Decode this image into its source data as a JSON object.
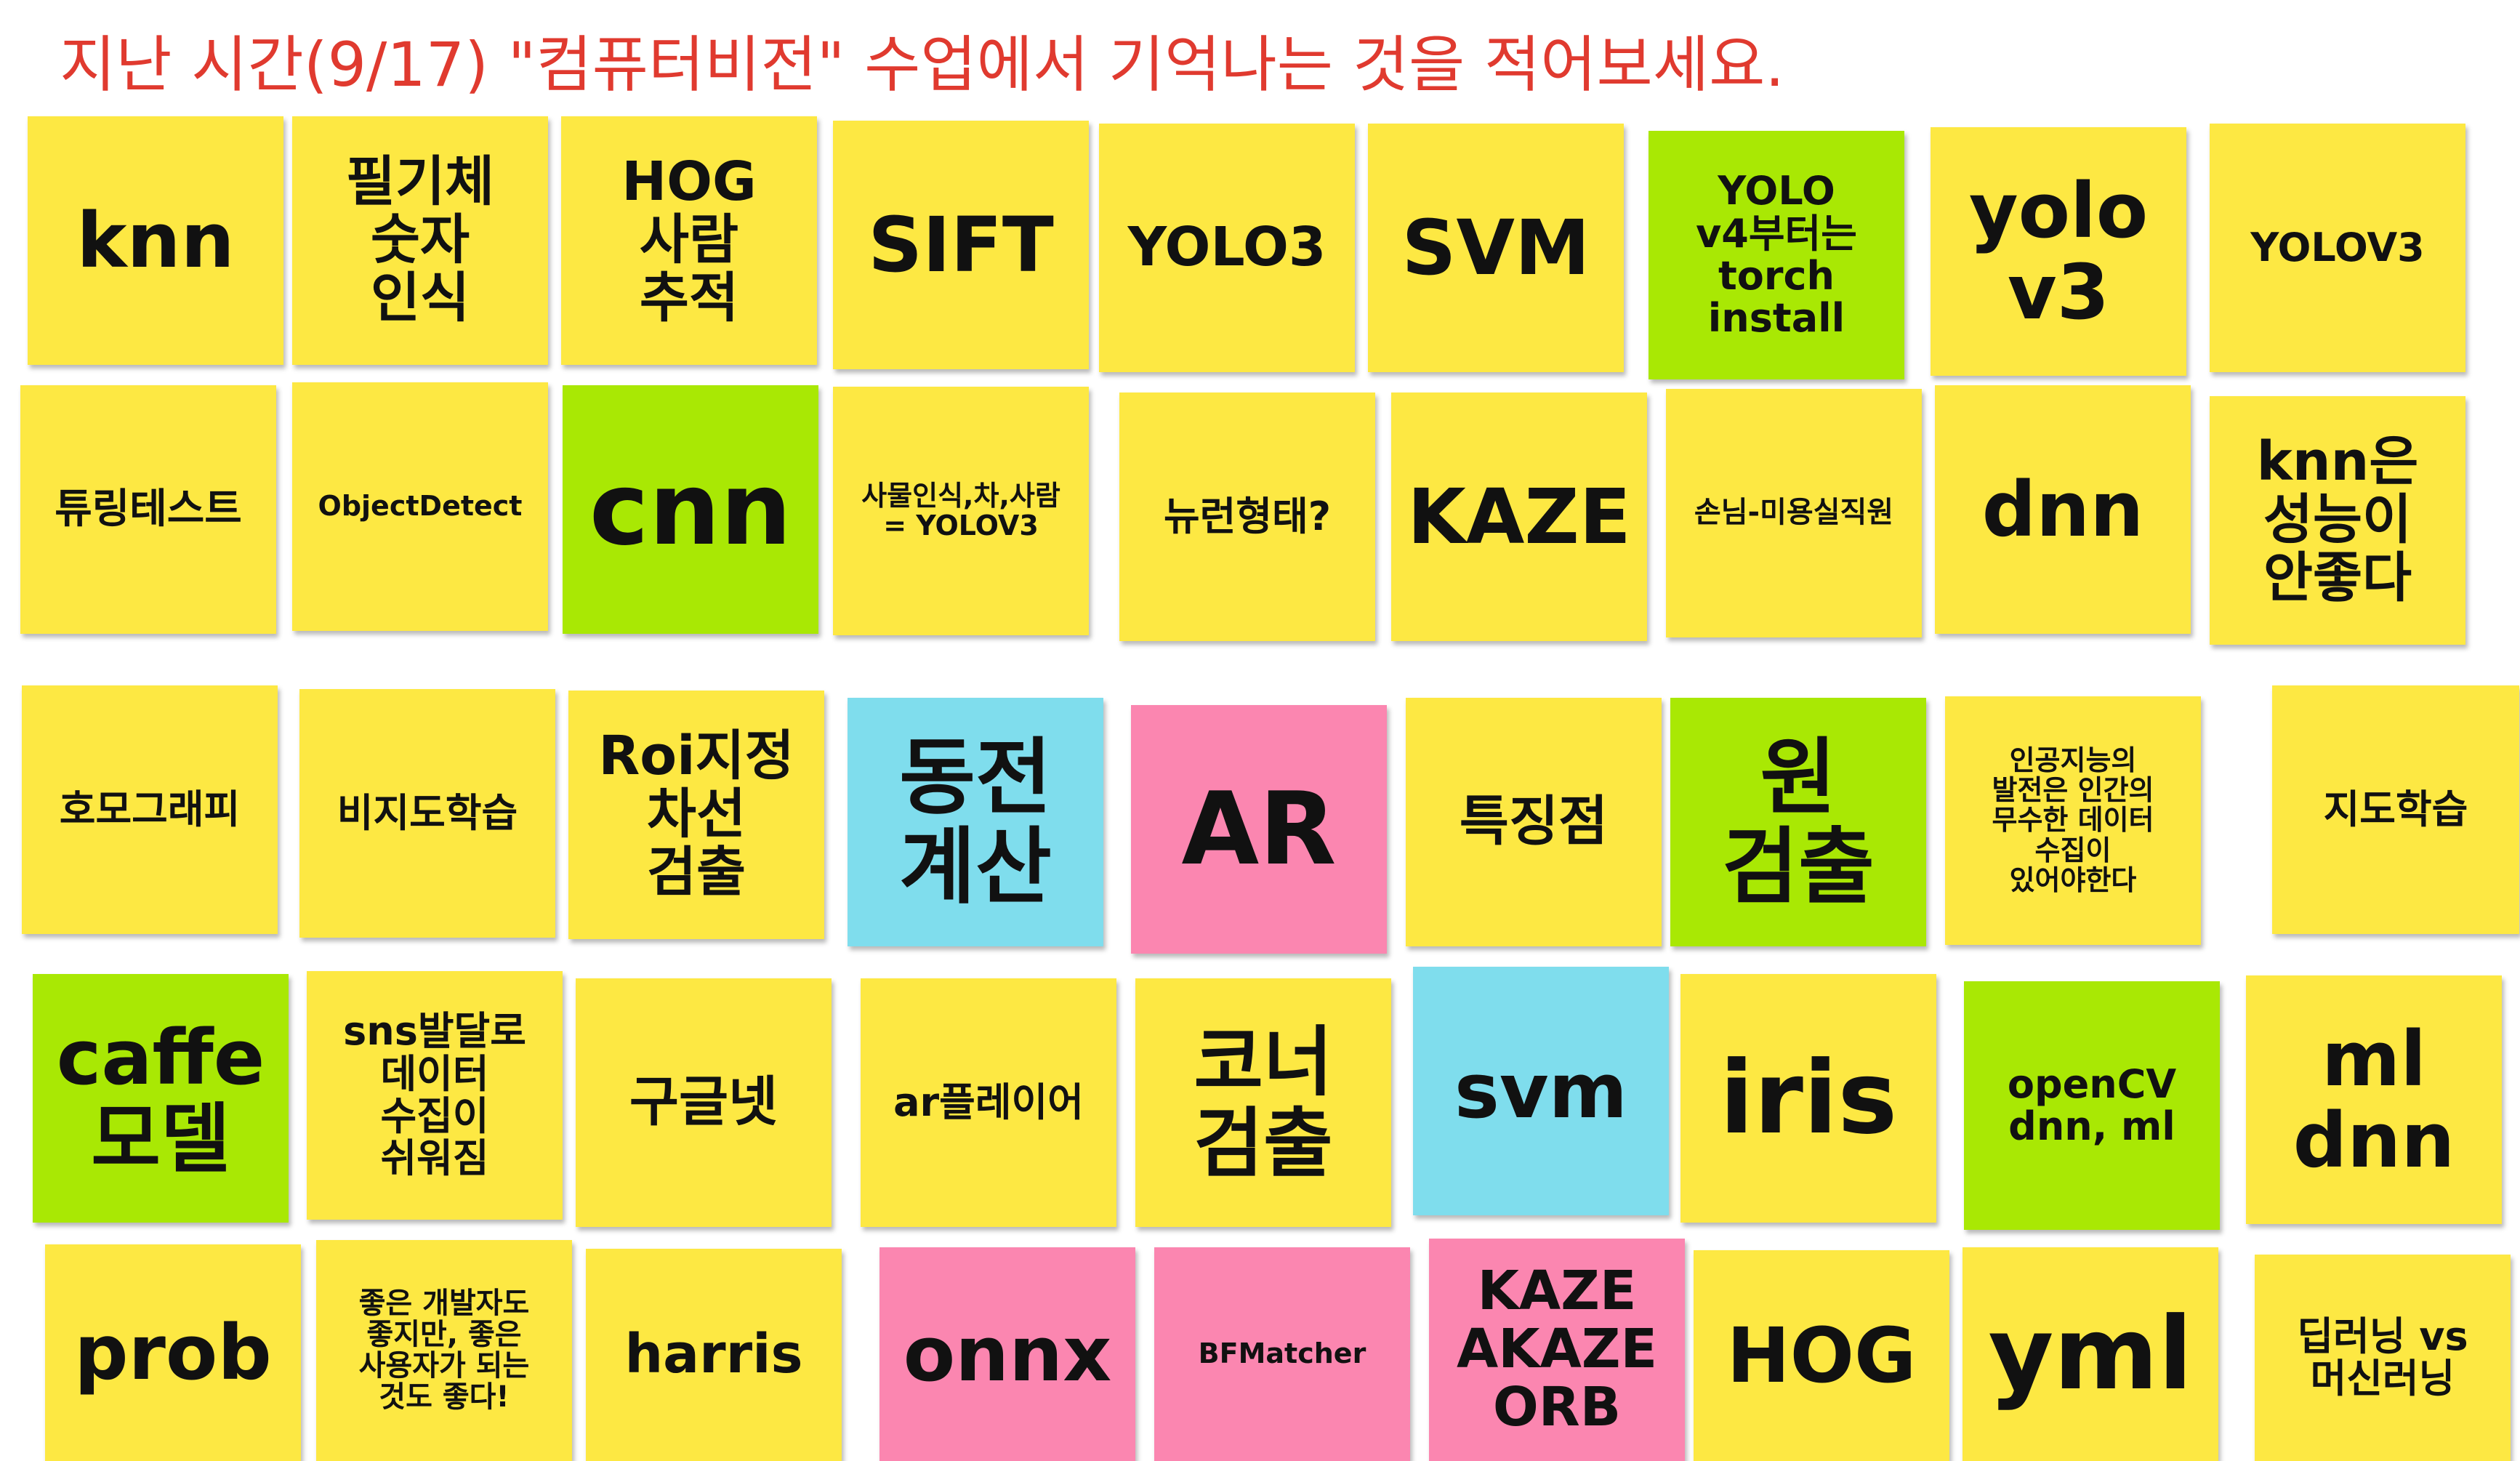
{
  "title": "지난 시간(9/17)  \"컴퓨터비전\"  수업에서 기억나는 것을 적어보세요.",
  "colors": {
    "title": "#e03a2f",
    "yellow": "#fde843",
    "green": "#a9e804",
    "blue": "#7fdded",
    "pink": "#fb86b0"
  },
  "notes": [
    {
      "text": "knn",
      "color": "yellow"
    },
    {
      "text": "필기체\n숫자\n인식",
      "color": "yellow"
    },
    {
      "text": "HOG\n사람\n추적",
      "color": "yellow"
    },
    {
      "text": "SIFT",
      "color": "yellow"
    },
    {
      "text": "YOLO3",
      "color": "yellow"
    },
    {
      "text": "SVM",
      "color": "yellow"
    },
    {
      "text": "YOLO\nv4부터는\ntorch\ninstall",
      "color": "green"
    },
    {
      "text": "yolo\nv3",
      "color": "yellow"
    },
    {
      "text": "YOLOV3",
      "color": "yellow"
    },
    {
      "text": "튜링테스트",
      "color": "yellow"
    },
    {
      "text": "ObjectDetect",
      "color": "yellow"
    },
    {
      "text": "cnn",
      "color": "green"
    },
    {
      "text": "사물인식,차,사람\n= YOLOV3",
      "color": "yellow"
    },
    {
      "text": "뉴런형태?",
      "color": "yellow"
    },
    {
      "text": "KAZE",
      "color": "yellow"
    },
    {
      "text": "손님-미용실직원",
      "color": "yellow"
    },
    {
      "text": "dnn",
      "color": "yellow"
    },
    {
      "text": "knn은\n성능이\n안좋다",
      "color": "yellow"
    },
    {
      "text": "호모그래피",
      "color": "yellow"
    },
    {
      "text": "비지도학습",
      "color": "yellow"
    },
    {
      "text": "Roi지정\n차선\n검출",
      "color": "yellow"
    },
    {
      "text": "동전\n계산",
      "color": "blue"
    },
    {
      "text": "AR",
      "color": "pink"
    },
    {
      "text": "특징점",
      "color": "yellow"
    },
    {
      "text": "원\n검출",
      "color": "green"
    },
    {
      "text": "인공지능의\n발전은 인간의\n무수한 데이터\n수집이\n있어야한다",
      "color": "yellow"
    },
    {
      "text": "지도학습",
      "color": "yellow"
    },
    {
      "text": "caffe\n모델",
      "color": "green"
    },
    {
      "text": "sns발달로\n데이터\n수집이\n쉬워짐",
      "color": "yellow"
    },
    {
      "text": "구글넷",
      "color": "yellow"
    },
    {
      "text": "ar플레이어",
      "color": "yellow"
    },
    {
      "text": "코너\n검출",
      "color": "yellow"
    },
    {
      "text": "svm",
      "color": "blue"
    },
    {
      "text": "iris",
      "color": "yellow"
    },
    {
      "text": "openCV\ndnn, ml",
      "color": "green"
    },
    {
      "text": "ml\ndnn",
      "color": "yellow"
    },
    {
      "text": "prob",
      "color": "yellow"
    },
    {
      "text": "좋은 개발자도\n좋지만, 좋은\n사용자가 되는\n것도 좋다!",
      "color": "yellow"
    },
    {
      "text": "harris",
      "color": "yellow"
    },
    {
      "text": "onnx",
      "color": "pink"
    },
    {
      "text": "BFMatcher",
      "color": "pink"
    },
    {
      "text": "KAZE\nAKAZE\nORB",
      "color": "pink"
    },
    {
      "text": "HOG",
      "color": "yellow"
    },
    {
      "text": "yml",
      "color": "yellow"
    },
    {
      "text": "딥러닝 vs\n머신러닝",
      "color": "yellow"
    }
  ]
}
